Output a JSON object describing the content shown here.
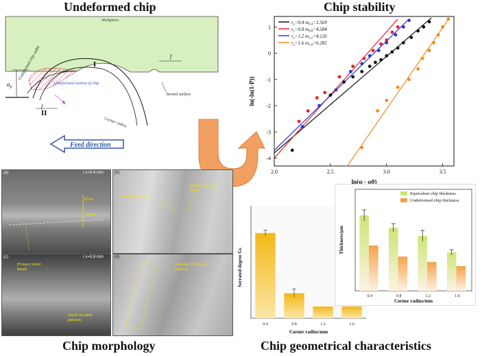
{
  "titles": {
    "undeformed_chip": "Undeformed chip",
    "chip_stability": "Chip stability",
    "chip_morphology": "Chip morphology",
    "chip_geometrical": "Chip geometrical characteristics"
  },
  "schematic": {
    "workpiece": "Workpiece",
    "undeformed_chip_width": "Undeformed chip width",
    "undeformed_section": "Undeformed section of chip",
    "turned_surface": "Turned surface",
    "corner_radius": "Corner radius",
    "ap": "a",
    "ap_sub": "p",
    "f": "f",
    "roman_one": "I",
    "roman_two": "II",
    "feed_direction": "Feed direction"
  },
  "chart_data": [
    {
      "type": "scatter",
      "title": "Chip stability",
      "xlabel": "ln(φ - φ0)",
      "ylabel": "ln(-ln(1-P))",
      "xlim": [
        2.0,
        3.6
      ],
      "ylim": [
        -4.3,
        1.4
      ],
      "xticks": [
        "2.0",
        "2.5",
        "3.0",
        "3.5"
      ],
      "yticks": [
        "1",
        "0",
        "-1",
        "-2",
        "-3",
        "-4"
      ],
      "legend_position": "top-left",
      "series": [
        {
          "label_r": "r",
          "label_sub": "ε",
          "r_value": "=0.4",
          "m_label": "m",
          "m_sub": "0.4",
          "m_value": "=3.569",
          "color": "#111111",
          "points": [
            [
              2.16,
              -3.7
            ],
            [
              2.5,
              -1.6
            ],
            [
              2.62,
              -1.1
            ],
            [
              2.7,
              -0.9
            ],
            [
              2.78,
              -0.7
            ],
            [
              2.85,
              -0.5
            ],
            [
              2.9,
              -0.35
            ],
            [
              2.95,
              -0.25
            ],
            [
              3.0,
              -0.1
            ],
            [
              3.05,
              0.05
            ],
            [
              3.1,
              0.2
            ],
            [
              3.15,
              0.4
            ],
            [
              3.22,
              0.6
            ],
            [
              3.28,
              0.85
            ],
            [
              3.33,
              1.0
            ],
            [
              3.38,
              1.2
            ]
          ],
          "fit": [
            [
              2.0,
              -3.8
            ],
            [
              3.4,
              1.35
            ]
          ]
        },
        {
          "label_r": "r",
          "label_sub": "ε",
          "r_value": "=0.8",
          "m_label": "m",
          "m_sub": "0.8",
          "m_value": "=4.584",
          "color": "#e8202a",
          "points": [
            [
              2.22,
              -2.6
            ],
            [
              2.3,
              -2.2
            ],
            [
              2.38,
              -1.7
            ],
            [
              2.45,
              -1.5
            ],
            [
              2.58,
              -0.9
            ],
            [
              2.7,
              -0.5
            ],
            [
              2.8,
              -0.2
            ],
            [
              2.88,
              0.1
            ],
            [
              2.95,
              0.35
            ],
            [
              3.0,
              0.5
            ],
            [
              3.05,
              0.8
            ],
            [
              3.1,
              1.0
            ]
          ],
          "fit": [
            [
              2.0,
              -4.0
            ],
            [
              3.1,
              1.3
            ]
          ]
        },
        {
          "label_r": "r",
          "label_sub": "ε",
          "r_value": "=1.2",
          "m_label": "m",
          "m_sub": "1.2",
          "m_value": "=4.126",
          "color": "#2a35d8",
          "points": [
            [
              2.25,
              -2.8
            ],
            [
              2.4,
              -2.0
            ],
            [
              2.55,
              -1.4
            ],
            [
              2.68,
              -0.7
            ],
            [
              2.78,
              -0.4
            ],
            [
              2.85,
              -0.1
            ],
            [
              2.93,
              0.1
            ],
            [
              3.0,
              0.4
            ],
            [
              3.08,
              0.7
            ],
            [
              3.15,
              1.0
            ],
            [
              3.2,
              1.25
            ]
          ],
          "fit": [
            [
              2.0,
              -3.7
            ],
            [
              3.2,
              1.3
            ]
          ]
        },
        {
          "label_r": "r",
          "label_sub": "ε",
          "r_value": "=1.6",
          "m_label": "m",
          "m_sub": "1.6",
          "m_value": "=6.281",
          "color": "#f08a1e",
          "points": [
            [
              2.78,
              -3.6
            ],
            [
              2.92,
              -2.2
            ],
            [
              3.0,
              -1.8
            ],
            [
              3.1,
              -1.3
            ],
            [
              3.2,
              -1.0
            ],
            [
              3.28,
              -0.6
            ],
            [
              3.32,
              -0.2
            ],
            [
              3.38,
              0.1
            ],
            [
              3.42,
              0.4
            ],
            [
              3.46,
              0.7
            ],
            [
              3.5,
              1.0
            ],
            [
              3.55,
              1.3
            ]
          ],
          "fit": [
            [
              2.65,
              -4.3
            ],
            [
              3.56,
              1.35
            ]
          ]
        }
      ]
    },
    {
      "type": "bar",
      "ylabel": "Serrated degree Gs",
      "xlabel": "Corner radius/mm",
      "categories": [
        "0.4",
        "0.8",
        "1.2",
        "1.6"
      ],
      "values": [
        0.58,
        0.17,
        0.08,
        0.08
      ],
      "errors": [
        0.02,
        0.03,
        0.0,
        0.0
      ],
      "ylim": [
        0,
        0.7
      ],
      "color": "#f3b817"
    },
    {
      "type": "bar",
      "ylabel": "Thickness/μm",
      "xlabel": "Corner radius/mm",
      "categories": [
        "0.4",
        "0.8",
        "1.2",
        "1.6"
      ],
      "ylim": [
        0,
        70
      ],
      "legend_position": "top-right",
      "series": [
        {
          "name": "Equivalent chip thickness",
          "values": [
            55,
            46,
            40,
            28
          ],
          "errors": [
            4,
            3,
            4,
            2
          ],
          "color": "#cde576"
        },
        {
          "name": "Undeformed chip thickness",
          "values": [
            33,
            25,
            21,
            18
          ],
          "color": "#f6a14d"
        }
      ]
    }
  ],
  "sem": {
    "a_tag": "(a)",
    "a_label": "r ε=0.4 mm",
    "b_tag": "(b)",
    "c_tag": "(c)",
    "c_label": "r ε=0.8 mm",
    "d_tag": "(d)",
    "anno_radiating": "Radiating ridges",
    "anno_segmented": "Segmented chip bands",
    "anno_primary": "Primary shear bands",
    "anno_small": "Small serrated patterns",
    "anno_lamellar": "Lamellar fish-scale pattern",
    "anno_hrev": "H rev",
    "anno_hmax": "H max"
  },
  "colors": {
    "workpiece": "#d8efbf",
    "arrow_orange": "#f29f62",
    "feed_arrow": "#2d57a8"
  }
}
